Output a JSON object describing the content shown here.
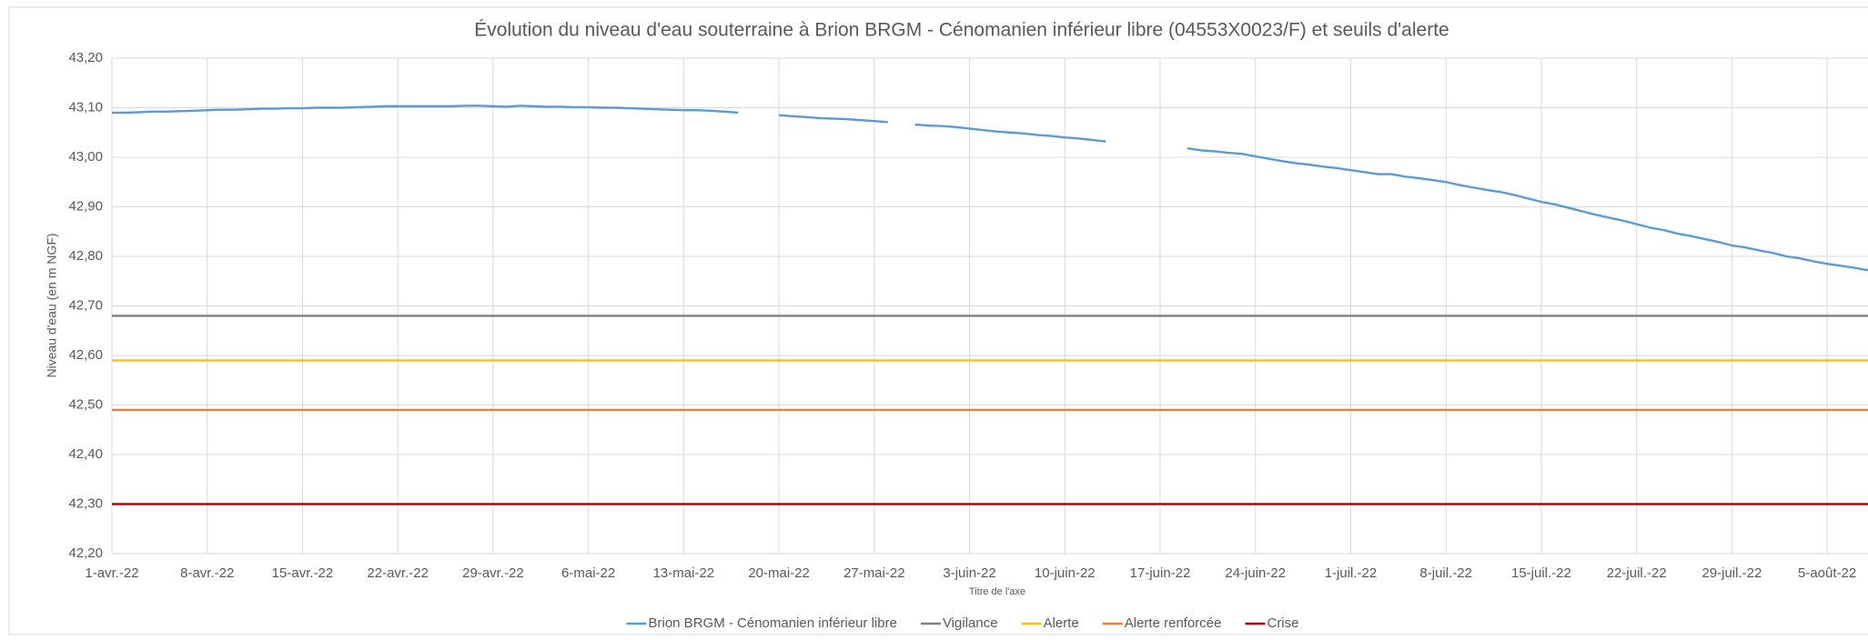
{
  "chart_data": {
    "type": "line",
    "title": "Évolution du niveau d'eau souterraine à Brion BRGM - Cénomanien inférieur libre (04553X0023/F) et seuils d'alerte",
    "x_label": "Titre de l'axe",
    "y_label": "Niveau d'eau (en m NGF)",
    "categories": [
      "1-avr.-22",
      null,
      null,
      null,
      null,
      null,
      null,
      "8-avr.-22",
      null,
      null,
      null,
      null,
      null,
      null,
      "15-avr.-22",
      null,
      null,
      null,
      null,
      null,
      null,
      "22-avr.-22",
      null,
      null,
      null,
      null,
      null,
      null,
      "29-avr.-22",
      null,
      null,
      null,
      null,
      null,
      null,
      "6-mai-22",
      null,
      null,
      null,
      null,
      null,
      null,
      "13-mai-22",
      null,
      null,
      null,
      null,
      null,
      null,
      "20-mai-22",
      null,
      null,
      null,
      null,
      null,
      null,
      "27-mai-22",
      null,
      null,
      null,
      null,
      null,
      null,
      "3-juin-22",
      null,
      null,
      null,
      null,
      null,
      null,
      "10-juin-22",
      null,
      null,
      null,
      null,
      null,
      null,
      "17-juin-22",
      null,
      null,
      null,
      null,
      null,
      null,
      "24-juin-22",
      null,
      null,
      null,
      null,
      null,
      null,
      "1-juil.-22",
      null,
      null,
      null,
      null,
      null,
      null,
      "8-juil.-22",
      null,
      null,
      null,
      null,
      null,
      null,
      "15-juil.-22",
      null,
      null,
      null,
      null,
      null,
      null,
      "22-juil.-22",
      null,
      null,
      null,
      null,
      null,
      null,
      "29-juil.-22",
      null,
      null,
      null,
      null,
      null,
      null,
      "5-août-22",
      null,
      null,
      null
    ],
    "series": [
      {
        "name": "Brion BRGM - Cénomanien inférieur libre",
        "color": "#5b9bd5",
        "values": [
          43.09,
          43.09,
          43.091,
          43.092,
          43.092,
          43.093,
          43.094,
          43.095,
          43.096,
          43.096,
          43.097,
          43.098,
          43.098,
          43.099,
          43.099,
          43.1,
          43.1,
          43.1,
          43.101,
          43.102,
          43.103,
          43.103,
          43.103,
          43.103,
          43.103,
          43.103,
          43.104,
          43.104,
          43.103,
          43.102,
          43.104,
          43.103,
          43.102,
          43.102,
          43.101,
          43.101,
          43.1,
          43.1,
          43.099,
          43.098,
          43.097,
          43.096,
          43.095,
          43.095,
          43.094,
          43.092,
          43.09,
          null,
          null,
          43.085,
          43.083,
          43.081,
          43.079,
          43.078,
          43.077,
          43.075,
          43.073,
          43.071,
          null,
          43.066,
          43.064,
          43.063,
          43.061,
          43.058,
          43.055,
          43.052,
          43.05,
          43.048,
          43.045,
          43.043,
          43.04,
          43.038,
          43.035,
          43.032,
          null,
          null,
          null,
          null,
          null,
          43.018,
          43.014,
          43.012,
          43.009,
          43.007,
          43.002,
          42.997,
          42.992,
          42.988,
          42.985,
          42.981,
          42.978,
          42.974,
          42.97,
          42.966,
          42.966,
          42.961,
          42.958,
          42.954,
          42.95,
          42.944,
          42.939,
          42.934,
          42.93,
          42.924,
          42.917,
          42.91,
          42.905,
          42.898,
          42.891,
          42.884,
          42.878,
          42.872,
          42.865,
          42.858,
          42.853,
          42.846,
          42.841,
          42.835,
          42.829,
          42.822,
          42.818,
          42.812,
          42.807,
          42.8,
          42.796,
          42.79,
          42.785,
          42.781,
          42.777,
          42.772
        ]
      },
      {
        "name": "Vigilance",
        "color": "#7f7f7f",
        "values": [
          42.68,
          42.68,
          42.68,
          42.68,
          42.68,
          42.68,
          42.68,
          42.68,
          42.68,
          42.68,
          42.68,
          42.68,
          42.68,
          42.68,
          42.68,
          42.68,
          42.68,
          42.68,
          42.68,
          42.68,
          42.68,
          42.68,
          42.68,
          42.68,
          42.68,
          42.68,
          42.68,
          42.68,
          42.68,
          42.68,
          42.68,
          42.68,
          42.68,
          42.68,
          42.68,
          42.68,
          42.68,
          42.68,
          42.68,
          42.68,
          42.68,
          42.68,
          42.68,
          42.68,
          42.68,
          42.68,
          42.68,
          42.68,
          42.68,
          42.68,
          42.68,
          42.68,
          42.68,
          42.68,
          42.68,
          42.68,
          42.68,
          42.68,
          42.68,
          42.68,
          42.68,
          42.68,
          42.68,
          42.68,
          42.68,
          42.68,
          42.68,
          42.68,
          42.68,
          42.68,
          42.68,
          42.68,
          42.68,
          42.68,
          42.68,
          42.68,
          42.68,
          42.68,
          42.68,
          42.68,
          42.68,
          42.68,
          42.68,
          42.68,
          42.68,
          42.68,
          42.68,
          42.68,
          42.68,
          42.68,
          42.68,
          42.68,
          42.68,
          42.68,
          42.68,
          42.68,
          42.68,
          42.68,
          42.68,
          42.68,
          42.68,
          42.68,
          42.68,
          42.68,
          42.68,
          42.68,
          42.68,
          42.68,
          42.68,
          42.68,
          42.68,
          42.68,
          42.68,
          42.68,
          42.68,
          42.68,
          42.68,
          42.68,
          42.68,
          42.68,
          42.68,
          42.68,
          42.68,
          42.68,
          42.68,
          42.68,
          42.68,
          42.68,
          42.68,
          42.68
        ]
      },
      {
        "name": "Alerte",
        "color": "#ffc000",
        "values": [
          42.59,
          42.59,
          42.59,
          42.59,
          42.59,
          42.59,
          42.59,
          42.59,
          42.59,
          42.59,
          42.59,
          42.59,
          42.59,
          42.59,
          42.59,
          42.59,
          42.59,
          42.59,
          42.59,
          42.59,
          42.59,
          42.59,
          42.59,
          42.59,
          42.59,
          42.59,
          42.59,
          42.59,
          42.59,
          42.59,
          42.59,
          42.59,
          42.59,
          42.59,
          42.59,
          42.59,
          42.59,
          42.59,
          42.59,
          42.59,
          42.59,
          42.59,
          42.59,
          42.59,
          42.59,
          42.59,
          42.59,
          42.59,
          42.59,
          42.59,
          42.59,
          42.59,
          42.59,
          42.59,
          42.59,
          42.59,
          42.59,
          42.59,
          42.59,
          42.59,
          42.59,
          42.59,
          42.59,
          42.59,
          42.59,
          42.59,
          42.59,
          42.59,
          42.59,
          42.59,
          42.59,
          42.59,
          42.59,
          42.59,
          42.59,
          42.59,
          42.59,
          42.59,
          42.59,
          42.59,
          42.59,
          42.59,
          42.59,
          42.59,
          42.59,
          42.59,
          42.59,
          42.59,
          42.59,
          42.59,
          42.59,
          42.59,
          42.59,
          42.59,
          42.59,
          42.59,
          42.59,
          42.59,
          42.59,
          42.59,
          42.59,
          42.59,
          42.59,
          42.59,
          42.59,
          42.59,
          42.59,
          42.59,
          42.59,
          42.59,
          42.59,
          42.59,
          42.59,
          42.59,
          42.59,
          42.59,
          42.59,
          42.59,
          42.59,
          42.59,
          42.59,
          42.59,
          42.59,
          42.59,
          42.59,
          42.59,
          42.59,
          42.59,
          42.59,
          42.59
        ]
      },
      {
        "name": "Alerte renforcée",
        "color": "#ed7d31",
        "values": [
          42.49,
          42.49,
          42.49,
          42.49,
          42.49,
          42.49,
          42.49,
          42.49,
          42.49,
          42.49,
          42.49,
          42.49,
          42.49,
          42.49,
          42.49,
          42.49,
          42.49,
          42.49,
          42.49,
          42.49,
          42.49,
          42.49,
          42.49,
          42.49,
          42.49,
          42.49,
          42.49,
          42.49,
          42.49,
          42.49,
          42.49,
          42.49,
          42.49,
          42.49,
          42.49,
          42.49,
          42.49,
          42.49,
          42.49,
          42.49,
          42.49,
          42.49,
          42.49,
          42.49,
          42.49,
          42.49,
          42.49,
          42.49,
          42.49,
          42.49,
          42.49,
          42.49,
          42.49,
          42.49,
          42.49,
          42.49,
          42.49,
          42.49,
          42.49,
          42.49,
          42.49,
          42.49,
          42.49,
          42.49,
          42.49,
          42.49,
          42.49,
          42.49,
          42.49,
          42.49,
          42.49,
          42.49,
          42.49,
          42.49,
          42.49,
          42.49,
          42.49,
          42.49,
          42.49,
          42.49,
          42.49,
          42.49,
          42.49,
          42.49,
          42.49,
          42.49,
          42.49,
          42.49,
          42.49,
          42.49,
          42.49,
          42.49,
          42.49,
          42.49,
          42.49,
          42.49,
          42.49,
          42.49,
          42.49,
          42.49,
          42.49,
          42.49,
          42.49,
          42.49,
          42.49,
          42.49,
          42.49,
          42.49,
          42.49,
          42.49,
          42.49,
          42.49,
          42.49,
          42.49,
          42.49,
          42.49,
          42.49,
          42.49,
          42.49,
          42.49,
          42.49,
          42.49,
          42.49,
          42.49,
          42.49,
          42.49,
          42.49,
          42.49,
          42.49,
          42.49
        ]
      },
      {
        "name": "Crise",
        "color": "#c00000",
        "values": [
          42.3,
          42.3,
          42.3,
          42.3,
          42.3,
          42.3,
          42.3,
          42.3,
          42.3,
          42.3,
          42.3,
          42.3,
          42.3,
          42.3,
          42.3,
          42.3,
          42.3,
          42.3,
          42.3,
          42.3,
          42.3,
          42.3,
          42.3,
          42.3,
          42.3,
          42.3,
          42.3,
          42.3,
          42.3,
          42.3,
          42.3,
          42.3,
          42.3,
          42.3,
          42.3,
          42.3,
          42.3,
          42.3,
          42.3,
          42.3,
          42.3,
          42.3,
          42.3,
          42.3,
          42.3,
          42.3,
          42.3,
          42.3,
          42.3,
          42.3,
          42.3,
          42.3,
          42.3,
          42.3,
          42.3,
          42.3,
          42.3,
          42.3,
          42.3,
          42.3,
          42.3,
          42.3,
          42.3,
          42.3,
          42.3,
          42.3,
          42.3,
          42.3,
          42.3,
          42.3,
          42.3,
          42.3,
          42.3,
          42.3,
          42.3,
          42.3,
          42.3,
          42.3,
          42.3,
          42.3,
          42.3,
          42.3,
          42.3,
          42.3,
          42.3,
          42.3,
          42.3,
          42.3,
          42.3,
          42.3,
          42.3,
          42.3,
          42.3,
          42.3,
          42.3,
          42.3,
          42.3,
          42.3,
          42.3,
          42.3,
          42.3,
          42.3,
          42.3,
          42.3,
          42.3,
          42.3,
          42.3,
          42.3,
          42.3,
          42.3,
          42.3,
          42.3,
          42.3,
          42.3,
          42.3,
          42.3,
          42.3,
          42.3,
          42.3,
          42.3,
          42.3,
          42.3,
          42.3,
          42.3,
          42.3,
          42.3,
          42.3,
          42.3,
          42.3,
          42.3
        ]
      }
    ],
    "ylim": [
      42.2,
      43.2
    ],
    "yticks": [
      {
        "value": 42.2,
        "label": "42,20"
      },
      {
        "value": 42.3,
        "label": "42,30"
      },
      {
        "value": 42.4,
        "label": "42,40"
      },
      {
        "value": 42.5,
        "label": "42,50"
      },
      {
        "value": 42.6,
        "label": "42,60"
      },
      {
        "value": 42.7,
        "label": "42,70"
      },
      {
        "value": 42.8,
        "label": "42,80"
      },
      {
        "value": 42.9,
        "label": "42,90"
      },
      {
        "value": 43.0,
        "label": "43,00"
      },
      {
        "value": 43.1,
        "label": "43,10"
      },
      {
        "value": 43.2,
        "label": "43,20"
      }
    ],
    "grid": true,
    "legend": "bottom"
  }
}
